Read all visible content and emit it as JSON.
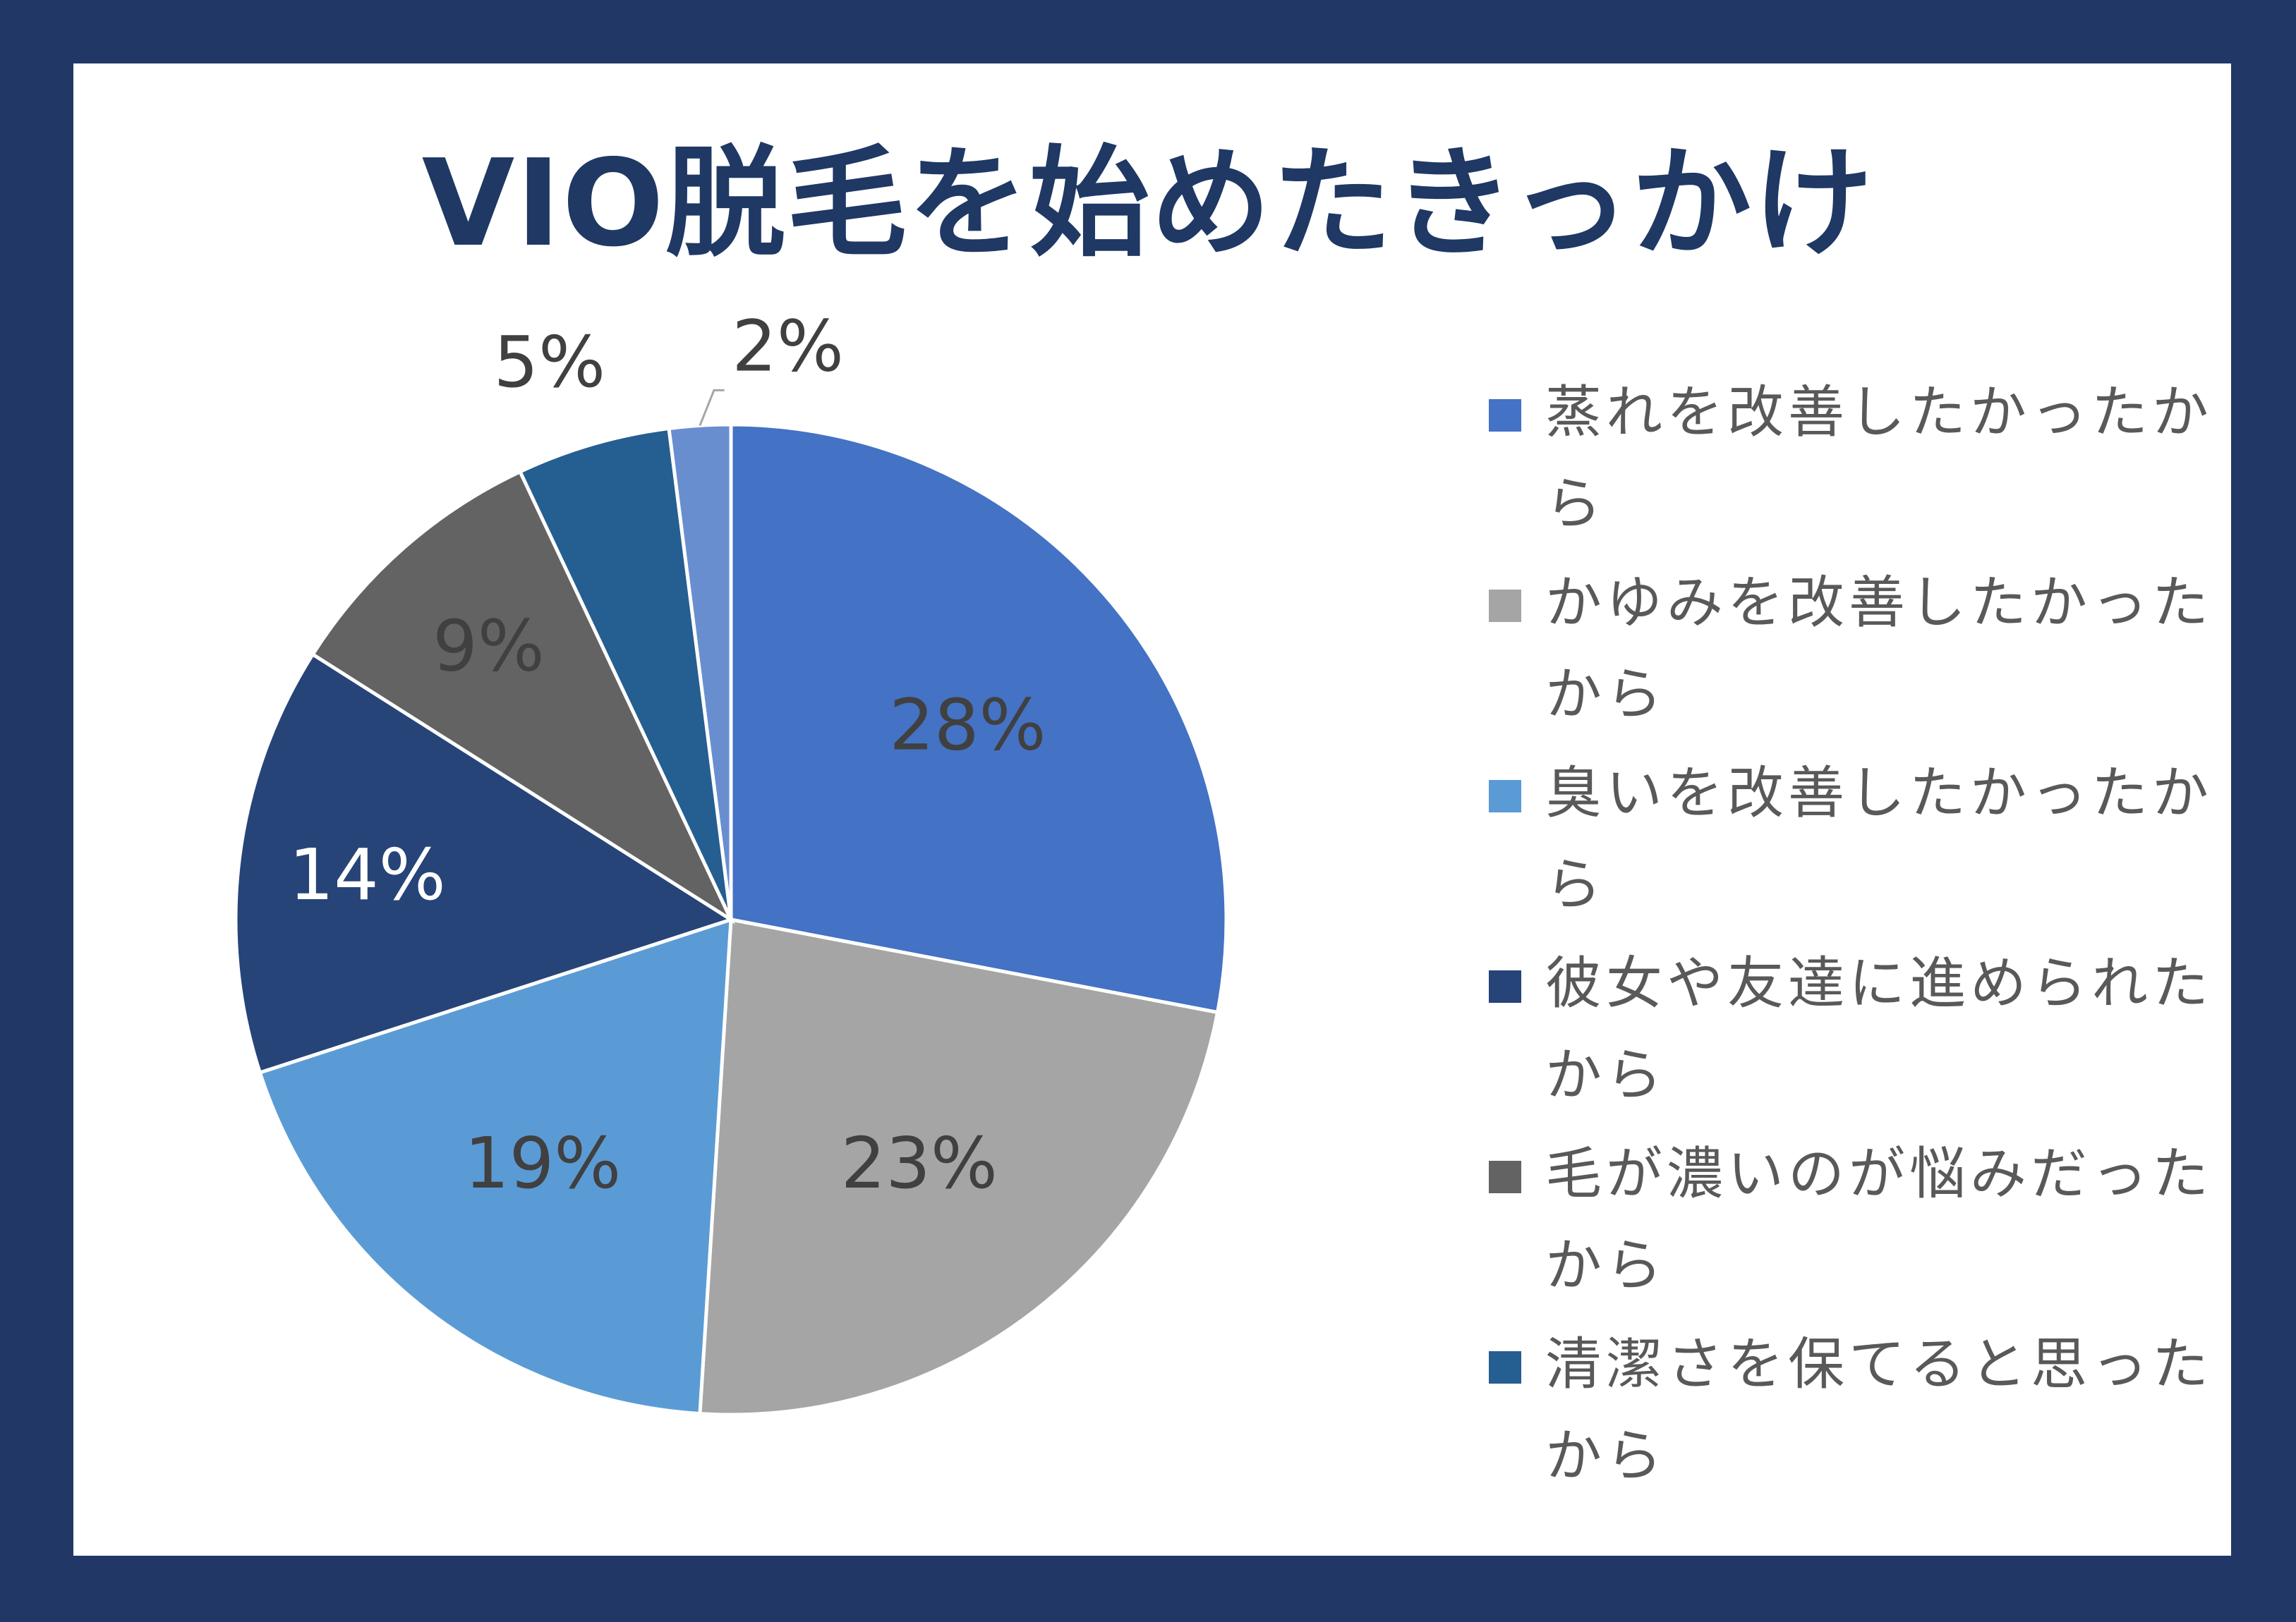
{
  "chart_data": {
    "type": "pie",
    "title": "VIO脱毛を始めたきっかけ",
    "slices": [
      {
        "label": "蒸れを改善したかったから",
        "value": 28,
        "display": "28%",
        "color": "#4472c4",
        "label_color": "#404040"
      },
      {
        "label": "かゆみを改善したかったから",
        "value": 23,
        "display": "23%",
        "color": "#a5a5a5",
        "label_color": "#404040"
      },
      {
        "label": "臭いを改善したかったから",
        "value": 19,
        "display": "19%",
        "color": "#5b9bd5",
        "label_color": "#404040"
      },
      {
        "label": "彼女や友達に進められたから",
        "value": 14,
        "display": "14%",
        "color": "#264478",
        "label_color": "#ffffff"
      },
      {
        "label": "毛が濃いのが悩みだったから",
        "value": 9,
        "display": "9%",
        "color": "#636363",
        "label_color": "#404040"
      },
      {
        "label": "清潔さを保てると思ったから",
        "value": 5,
        "display": "5%",
        "color": "#255e91",
        "label_color": "#404040"
      },
      {
        "label": "",
        "value": 2,
        "display": "2%",
        "color": "#698ed0",
        "label_color": "#404040"
      }
    ],
    "legend_position": "right"
  }
}
